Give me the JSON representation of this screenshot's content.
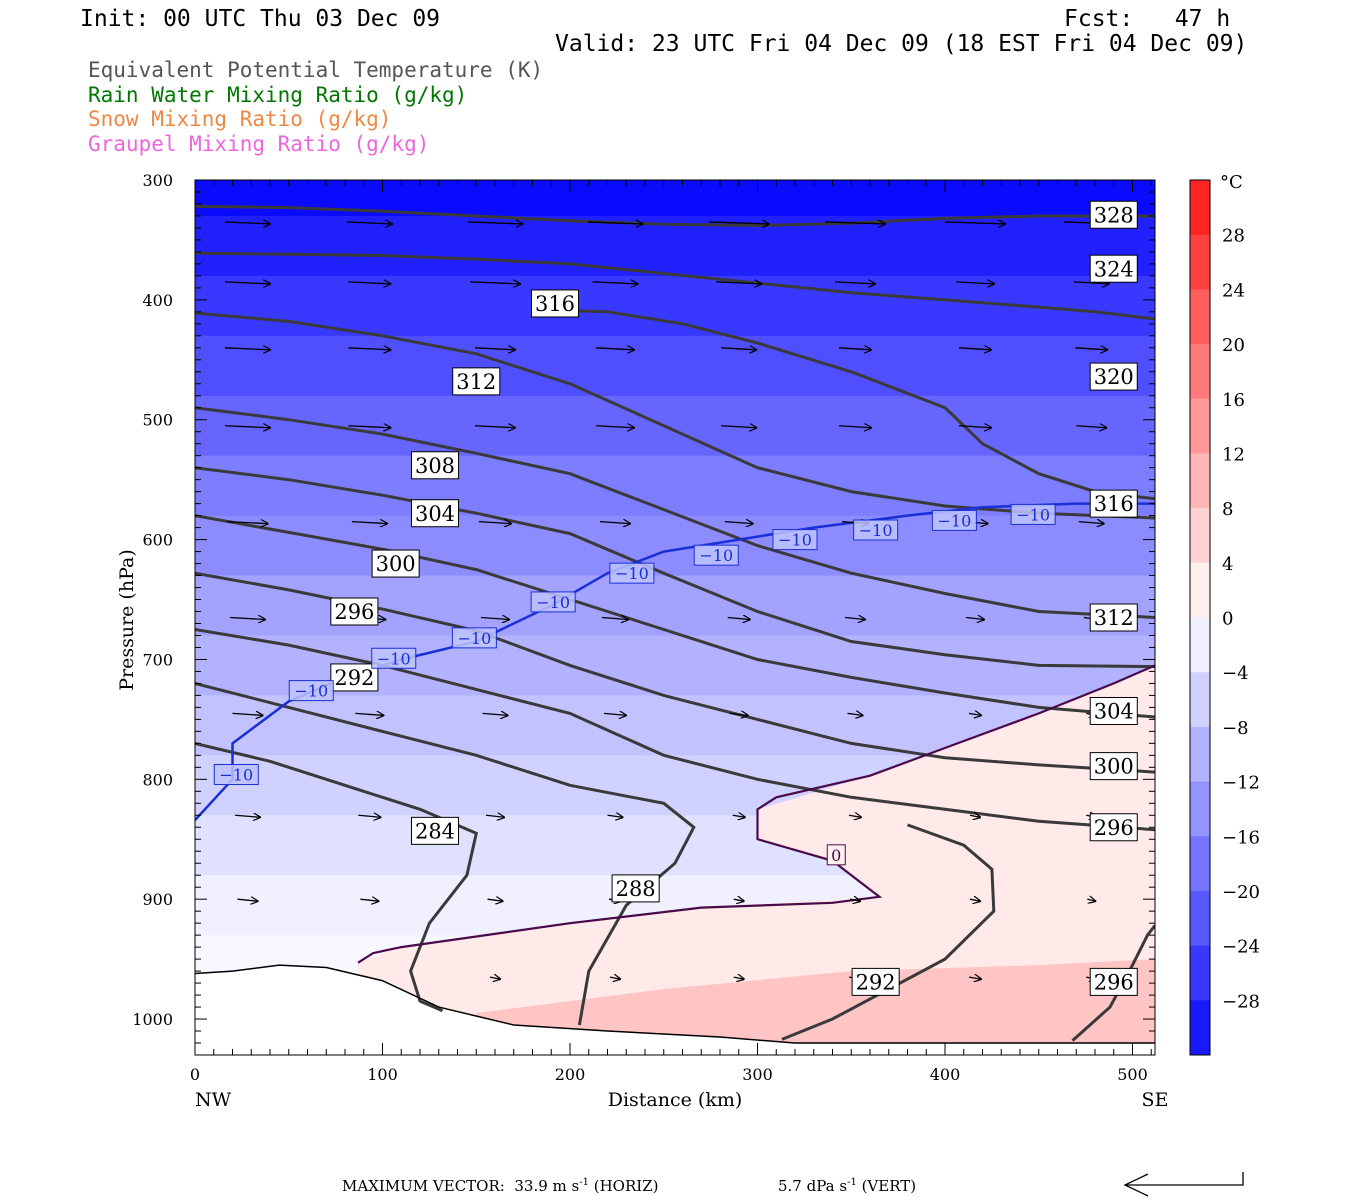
{
  "header": {
    "init": "Init: 00 UTC Thu 03 Dec 09",
    "fcst": "Fcst:   47 h",
    "valid": "Valid: 23 UTC Fri 04 Dec 09 (18 EST Fri 04 Dec 09)"
  },
  "legend": [
    {
      "label": "Equivalent Potential Temperature (K)",
      "color": "#555555"
    },
    {
      "label": "Rain Water Mixing Ratio (g/kg)",
      "color": "#007700"
    },
    {
      "label": "Snow Mixing Ratio (g/kg)",
      "color": "#ee8844"
    },
    {
      "label": "Graupel Mixing Ratio (g/kg)",
      "color": "#ee66dd"
    }
  ],
  "chart_data": {
    "type": "cross-section",
    "xlabel": "Distance (km)",
    "ylabel": "Pressure (hPa)",
    "x_left_label": "NW",
    "x_right_label": "SE",
    "xlim": [
      0,
      512
    ],
    "ylim": [
      1030,
      300
    ],
    "x_ticks": [
      0,
      100,
      200,
      300,
      400,
      500
    ],
    "y_ticks": [
      300,
      400,
      500,
      600,
      700,
      800,
      900,
      1000
    ],
    "colorbar": {
      "unit": "°C",
      "ticks": [
        28,
        24,
        20,
        16,
        12,
        8,
        4,
        0,
        -4,
        -8,
        -12,
        -16,
        -20,
        -24,
        -28
      ],
      "tick_labels": [
        "28",
        "24",
        "20",
        "16",
        "12",
        "8",
        "4",
        "0",
        "−4",
        "−8",
        "−12",
        "−16",
        "−20",
        "−24",
        "−28"
      ],
      "range": [
        -32,
        32
      ],
      "warm_color": "#ff1515",
      "cold_color": "#0a0aff"
    },
    "theta_e_contours": [
      {
        "level": "328",
        "points": [
          [
            0,
            322
          ],
          [
            50,
            323
          ],
          [
            100,
            326
          ],
          [
            150,
            330
          ],
          [
            200,
            334
          ],
          [
            250,
            337
          ],
          [
            300,
            338
          ],
          [
            350,
            336
          ],
          [
            400,
            332
          ],
          [
            450,
            330
          ],
          [
            512,
            330
          ]
        ]
      },
      {
        "level": "324",
        "points": [
          [
            0,
            361
          ],
          [
            50,
            362
          ],
          [
            100,
            363
          ],
          [
            150,
            366
          ],
          [
            200,
            370
          ],
          [
            250,
            378
          ],
          [
            300,
            386
          ],
          [
            350,
            394
          ],
          [
            400,
            400
          ],
          [
            450,
            406
          ],
          [
            480,
            410
          ],
          [
            512,
            416
          ]
        ]
      },
      {
        "level": "316",
        "points": [
          [
            0,
            411
          ],
          [
            50,
            418
          ],
          [
            100,
            430
          ],
          [
            150,
            445
          ],
          [
            200,
            470
          ],
          [
            250,
            505
          ],
          [
            300,
            540
          ],
          [
            350,
            560
          ],
          [
            400,
            572
          ],
          [
            450,
            578
          ],
          [
            512,
            582
          ]
        ]
      },
      {
        "level": "320",
        "points": [
          [
            180,
            408
          ],
          [
            220,
            410
          ],
          [
            260,
            420
          ],
          [
            300,
            436
          ],
          [
            350,
            460
          ],
          [
            400,
            490
          ],
          [
            420,
            520
          ],
          [
            450,
            545
          ],
          [
            480,
            560
          ],
          [
            512,
            566
          ]
        ]
      },
      {
        "level": "312",
        "points": [
          [
            0,
            490
          ],
          [
            50,
            500
          ],
          [
            100,
            512
          ],
          [
            150,
            528
          ],
          [
            200,
            545
          ],
          [
            250,
            575
          ],
          [
            300,
            605
          ],
          [
            350,
            628
          ],
          [
            400,
            645
          ],
          [
            450,
            660
          ],
          [
            512,
            665
          ]
        ]
      },
      {
        "level": "308",
        "points": [
          [
            0,
            540
          ],
          [
            50,
            550
          ],
          [
            100,
            563
          ],
          [
            150,
            578
          ],
          [
            200,
            595
          ],
          [
            250,
            628
          ],
          [
            300,
            660
          ],
          [
            350,
            685
          ],
          [
            400,
            696
          ],
          [
            450,
            705
          ],
          [
            512,
            706
          ]
        ]
      },
      {
        "level": "304",
        "points": [
          [
            0,
            580
          ],
          [
            50,
            594
          ],
          [
            100,
            608
          ],
          [
            150,
            625
          ],
          [
            200,
            650
          ],
          [
            250,
            675
          ],
          [
            300,
            700
          ],
          [
            350,
            715
          ],
          [
            400,
            728
          ],
          [
            450,
            740
          ],
          [
            512,
            748
          ]
        ]
      },
      {
        "level": "300",
        "points": [
          [
            0,
            628
          ],
          [
            50,
            642
          ],
          [
            100,
            658
          ],
          [
            150,
            676
          ],
          [
            200,
            705
          ],
          [
            250,
            730
          ],
          [
            300,
            750
          ],
          [
            350,
            770
          ],
          [
            400,
            782
          ],
          [
            450,
            788
          ],
          [
            512,
            794
          ]
        ]
      },
      {
        "level": "296",
        "points": [
          [
            0,
            675
          ],
          [
            50,
            688
          ],
          [
            100,
            705
          ],
          [
            150,
            725
          ],
          [
            200,
            745
          ],
          [
            250,
            780
          ],
          [
            300,
            800
          ],
          [
            350,
            815
          ],
          [
            400,
            825
          ],
          [
            450,
            835
          ],
          [
            512,
            842
          ]
        ]
      },
      {
        "level": "292",
        "points": [
          [
            0,
            720
          ],
          [
            50,
            740
          ],
          [
            100,
            760
          ],
          [
            150,
            780
          ],
          [
            200,
            805
          ],
          [
            250,
            820
          ],
          [
            266,
            840
          ],
          [
            256,
            870
          ],
          [
            230,
            905
          ],
          [
            210,
            960
          ],
          [
            205,
            1005
          ]
        ]
      },
      {
        "level": "284",
        "points": [
          [
            0,
            770
          ],
          [
            40,
            785
          ],
          [
            80,
            805
          ],
          [
            120,
            825
          ],
          [
            150,
            845
          ],
          [
            145,
            880
          ],
          [
            125,
            920
          ],
          [
            115,
            960
          ],
          [
            120,
            985
          ],
          [
            132,
            993
          ]
        ]
      },
      {
        "level": "292-low",
        "points": [
          [
            313,
            1017
          ],
          [
            340,
            1000
          ],
          [
            370,
            975
          ],
          [
            400,
            950
          ],
          [
            426,
            910
          ],
          [
            425,
            875
          ],
          [
            410,
            855
          ],
          [
            380,
            838
          ]
        ]
      },
      {
        "level": "296-low",
        "points": [
          [
            468,
            1018
          ],
          [
            488,
            990
          ],
          [
            500,
            955
          ],
          [
            508,
            930
          ],
          [
            512,
            922
          ]
        ]
      }
    ],
    "contour_labels": [
      {
        "text": "328",
        "x": 490,
        "y": 329
      },
      {
        "text": "324",
        "x": 490,
        "y": 374
      },
      {
        "text": "316",
        "x": 192,
        "y": 403
      },
      {
        "text": "312",
        "x": 150,
        "y": 468
      },
      {
        "text": "320",
        "x": 490,
        "y": 464
      },
      {
        "text": "308",
        "x": 128,
        "y": 538
      },
      {
        "text": "316",
        "x": 490,
        "y": 570
      },
      {
        "text": "304",
        "x": 128,
        "y": 578
      },
      {
        "text": "300",
        "x": 107,
        "y": 620
      },
      {
        "text": "312",
        "x": 490,
        "y": 665
      },
      {
        "text": "296",
        "x": 85,
        "y": 660
      },
      {
        "text": "292",
        "x": 85,
        "y": 715
      },
      {
        "text": "304",
        "x": 490,
        "y": 743
      },
      {
        "text": "300",
        "x": 490,
        "y": 789
      },
      {
        "text": "284",
        "x": 128,
        "y": 843
      },
      {
        "text": "296",
        "x": 490,
        "y": 840
      },
      {
        "text": "288",
        "x": 235,
        "y": 891
      },
      {
        "text": "292",
        "x": 363,
        "y": 969
      },
      {
        "text": "296",
        "x": 490,
        "y": 969
      }
    ],
    "isotherm_minus10": {
      "label": "−10",
      "points": [
        [
          0,
          834
        ],
        [
          20,
          800
        ],
        [
          20,
          770
        ],
        [
          50,
          735
        ],
        [
          80,
          715
        ],
        [
          110,
          700
        ],
        [
          150,
          685
        ],
        [
          190,
          655
        ],
        [
          220,
          628
        ],
        [
          250,
          610
        ],
        [
          290,
          600
        ],
        [
          330,
          590
        ],
        [
          380,
          580
        ],
        [
          420,
          573
        ],
        [
          470,
          570
        ],
        [
          512,
          570
        ]
      ],
      "label_positions": [
        [
          22,
          796
        ],
        [
          62,
          726
        ],
        [
          106,
          699
        ],
        [
          149,
          682
        ],
        [
          191,
          652
        ],
        [
          233,
          628
        ],
        [
          278,
          613
        ],
        [
          320,
          600
        ],
        [
          363,
          592
        ],
        [
          405,
          584
        ],
        [
          447,
          579
        ]
      ]
    },
    "isotherm_zero": {
      "label": "0",
      "points": [
        [
          87,
          953
        ],
        [
          95,
          945
        ],
        [
          110,
          940
        ],
        [
          200,
          920
        ],
        [
          270,
          907
        ],
        [
          340,
          903
        ],
        [
          365,
          898
        ],
        [
          350,
          880
        ],
        [
          340,
          868
        ],
        [
          300,
          850
        ],
        [
          300,
          825
        ],
        [
          310,
          815
        ],
        [
          360,
          797
        ],
        [
          410,
          768
        ],
        [
          450,
          745
        ],
        [
          490,
          720
        ],
        [
          512,
          705
        ]
      ],
      "label_position": [
        342,
        863
      ]
    },
    "terrain": [
      [
        0,
        962
      ],
      [
        20,
        960
      ],
      [
        45,
        955
      ],
      [
        70,
        957
      ],
      [
        100,
        968
      ],
      [
        130,
        990
      ],
      [
        170,
        1005
      ],
      [
        220,
        1010
      ],
      [
        280,
        1015
      ],
      [
        320,
        1020
      ],
      [
        512,
        1020
      ]
    ],
    "wind_vectors": {
      "x_positions": [
        28,
        93,
        160,
        224,
        290,
        352,
        416,
        478
      ],
      "rows": [
        {
          "p": 335,
          "lens": [
            45,
            45,
            55,
            55,
            60,
            60,
            60,
            55
          ]
        },
        {
          "p": 385,
          "lens": [
            45,
            42,
            50,
            45,
            45,
            40,
            38,
            35
          ]
        },
        {
          "p": 440,
          "lens": [
            45,
            42,
            40,
            38,
            35,
            32,
            32,
            32
          ]
        },
        {
          "p": 505,
          "lens": [
            45,
            42,
            40,
            38,
            35,
            32,
            32,
            30
          ]
        },
        {
          "p": 585,
          "lens": [
            40,
            35,
            32,
            30,
            28,
            26,
            25,
            25
          ]
        },
        {
          "p": 665,
          "lens": [
            35,
            32,
            28,
            26,
            22,
            20,
            18,
            15
          ]
        },
        {
          "p": 745,
          "lens": [
            30,
            28,
            25,
            22,
            18,
            15,
            12,
            10
          ]
        },
        {
          "p": 830,
          "lens": [
            25,
            22,
            18,
            15,
            12,
            12,
            10,
            10
          ]
        },
        {
          "p": 900,
          "lens": [
            20,
            18,
            15,
            12,
            10,
            10,
            10,
            8
          ]
        },
        {
          "p": 965,
          "lens": [
            0,
            0,
            10,
            10,
            10,
            12,
            12,
            10
          ]
        }
      ]
    }
  },
  "footer": {
    "max_vector": "MAXIMUM VECTOR:  33.9 m s",
    "horiz_unit": "-1",
    "horiz": " (HORIZ)",
    "vert_value": "5.7 dPa s",
    "vert_unit": "-1",
    "vert": " (VERT)"
  }
}
